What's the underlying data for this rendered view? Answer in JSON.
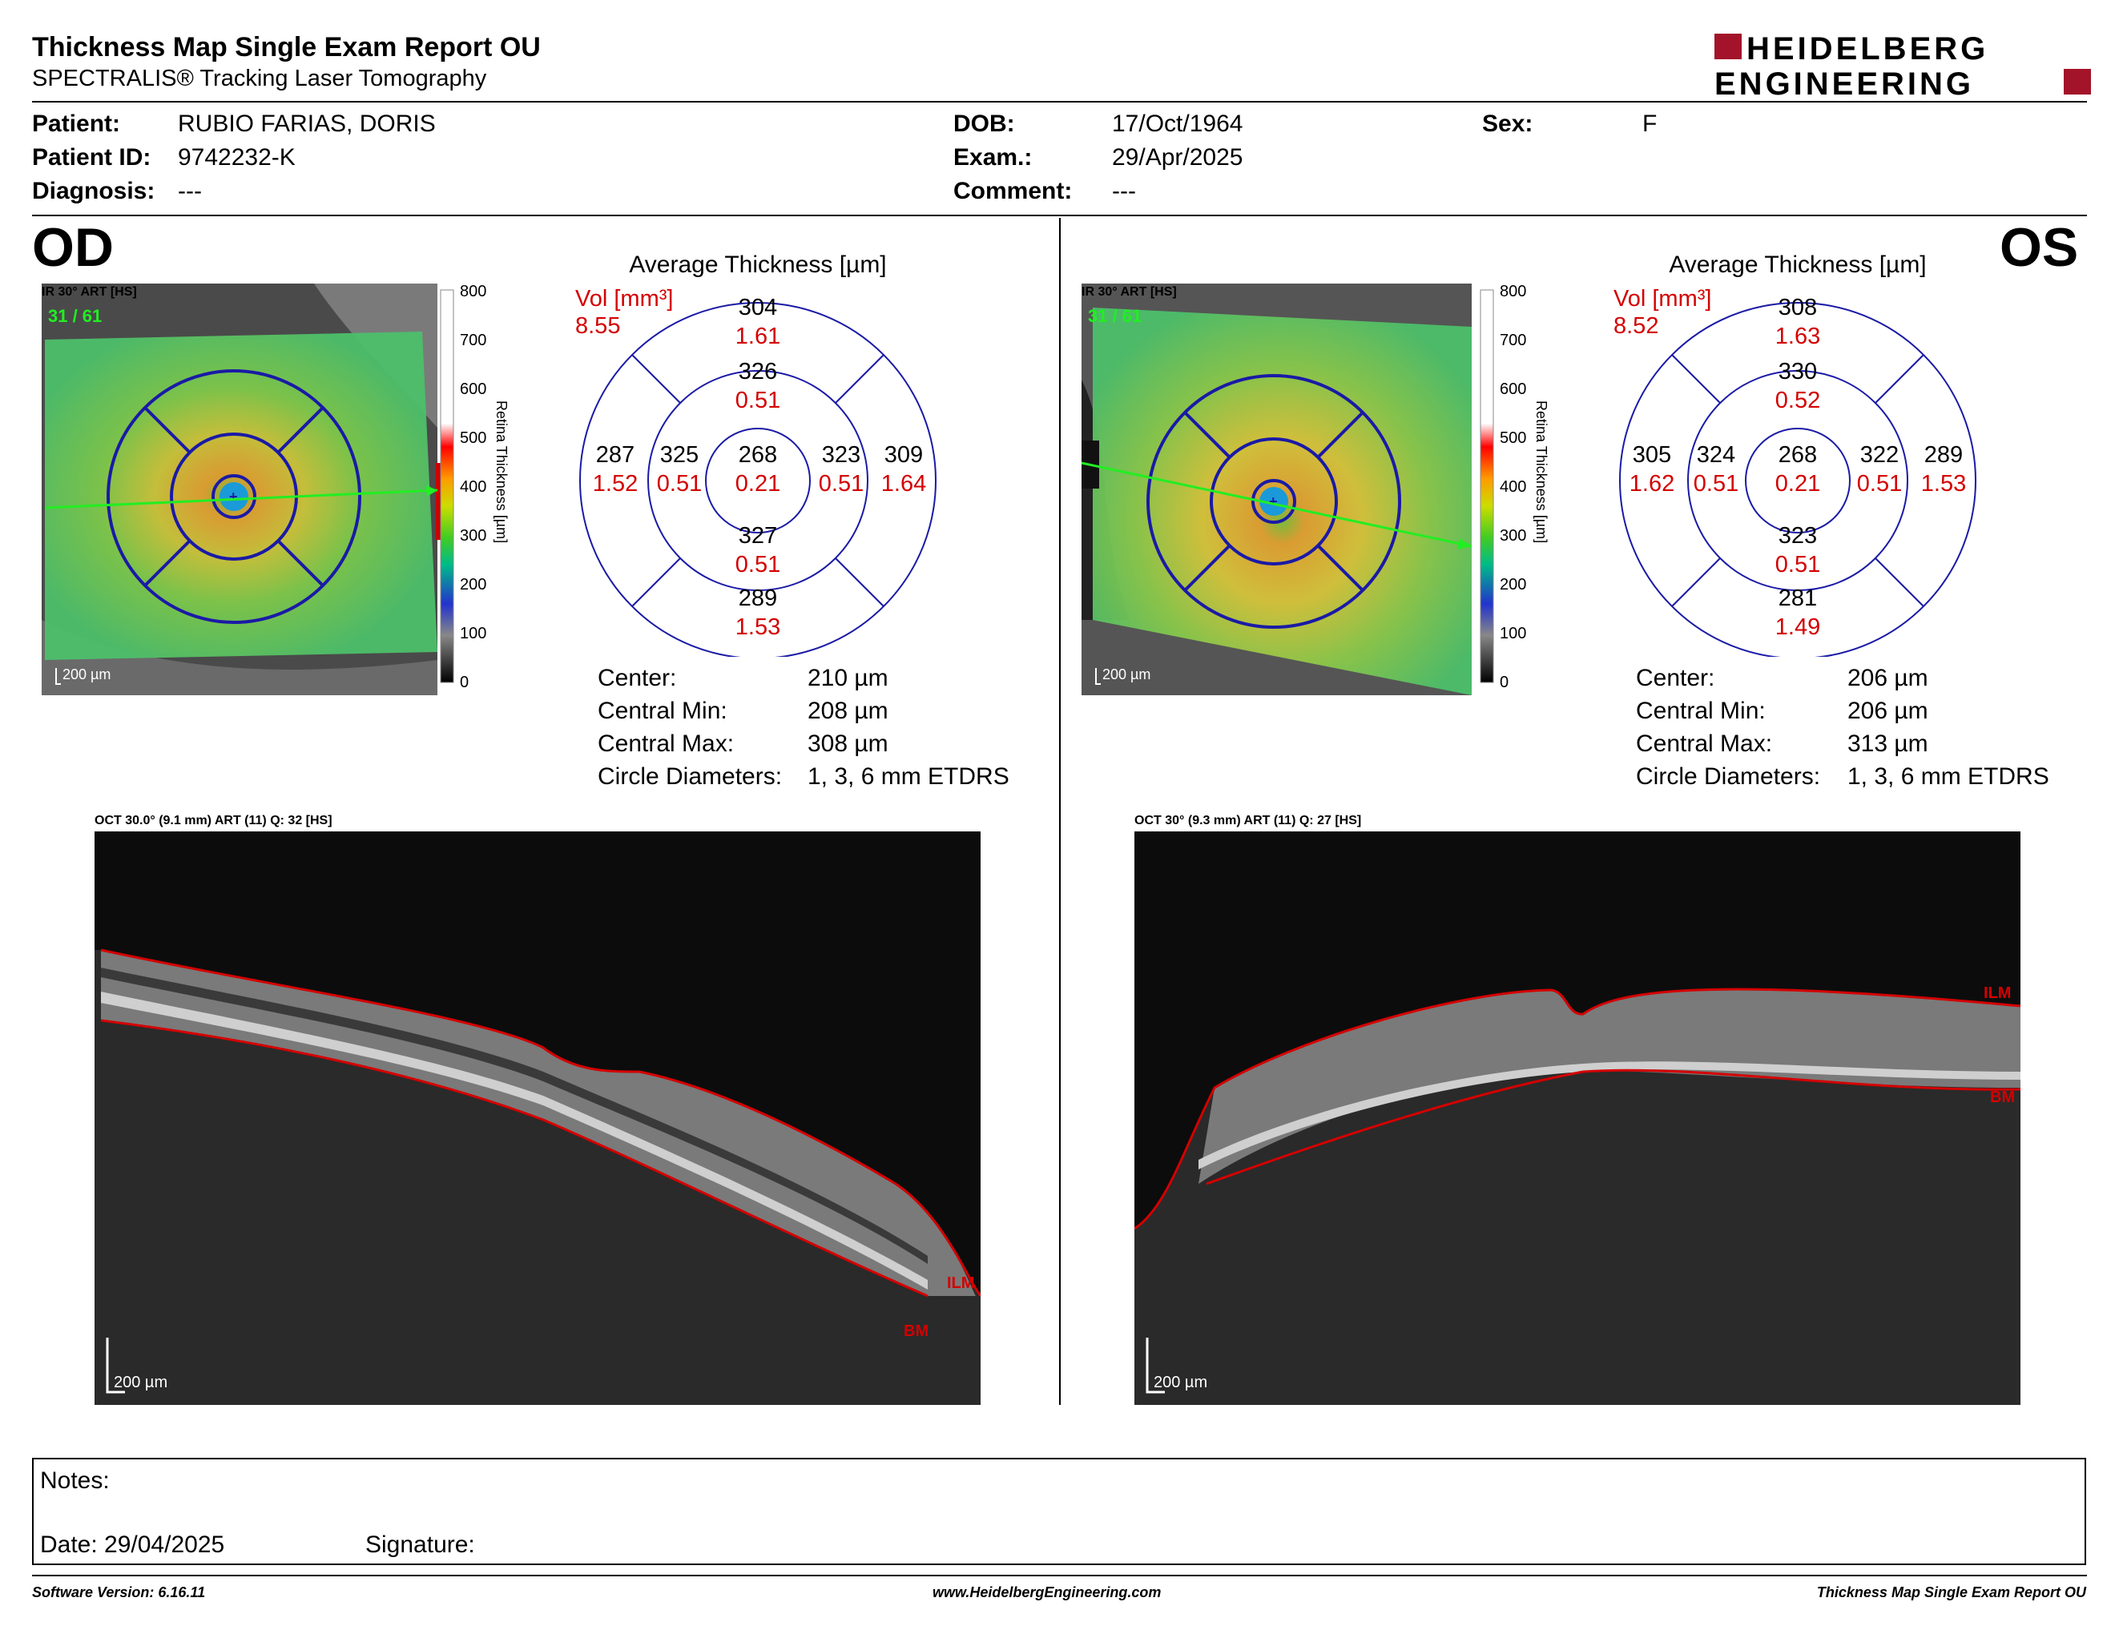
{
  "header": {
    "title": "Thickness Map Single Exam Report OU",
    "subtitle": "SPECTRALIS® Tracking Laser Tomography",
    "logo_line1": "HEIDELBERG",
    "logo_line2": "ENGINEERING"
  },
  "patient": {
    "patient_label": "Patient:",
    "patient_value": "RUBIO FARIAS, DORIS",
    "id_label": "Patient ID:",
    "id_value": "9742232-K",
    "diagnosis_label": "Diagnosis:",
    "diagnosis_value": "---",
    "dob_label": "DOB:",
    "dob_value": "17/Oct/1964",
    "exam_label": "Exam.:",
    "exam_value": "29/Apr/2025",
    "comment_label": "Comment:",
    "comment_value": "---",
    "sex_label": "Sex:",
    "sex_value": "F"
  },
  "colorbar": {
    "ticks": [
      "800",
      "700",
      "600",
      "500",
      "400",
      "300",
      "200",
      "100",
      "0"
    ],
    "label": "Retina Thickness [µm]"
  },
  "od": {
    "eye": "OD",
    "ir_caption": "IR 30° ART [HS]",
    "frame": "31 / 61",
    "scale": "200 µm",
    "etdrs_title": "Average Thickness [µm]",
    "vol_label": "Vol [mm³]",
    "vol_total": "8.55",
    "sectors": {
      "outer_sup": {
        "t": "304",
        "v": "1.61"
      },
      "inner_sup": {
        "t": "326",
        "v": "0.51"
      },
      "outer_temp": {
        "t": "287",
        "v": "1.52"
      },
      "inner_temp": {
        "t": "325",
        "v": "0.51"
      },
      "center": {
        "t": "268",
        "v": "0.21"
      },
      "inner_nas": {
        "t": "323",
        "v": "0.51"
      },
      "outer_nas": {
        "t": "309",
        "v": "1.64"
      },
      "inner_inf": {
        "t": "327",
        "v": "0.51"
      },
      "outer_inf": {
        "t": "289",
        "v": "1.53"
      }
    },
    "stats": [
      {
        "label": "Center:",
        "value": "210 µm"
      },
      {
        "label": "Central Min:",
        "value": "208 µm"
      },
      {
        "label": "Central Max:",
        "value": "308 µm"
      },
      {
        "label": "Circle Diameters:",
        "value": "1, 3, 6 mm ETDRS"
      }
    ],
    "oct_caption": "OCT 30.0° (9.1 mm) ART (11) Q: 32 [HS]",
    "oct_scale": "200 µm",
    "ilm": "ILM",
    "bm": "BM"
  },
  "os": {
    "eye": "OS",
    "ir_caption": "IR 30° ART [HS]",
    "frame": "31 / 61",
    "scale": "200 µm",
    "etdrs_title": "Average Thickness [µm]",
    "vol_label": "Vol [mm³]",
    "vol_total": "8.52",
    "sectors": {
      "outer_sup": {
        "t": "308",
        "v": "1.63"
      },
      "inner_sup": {
        "t": "330",
        "v": "0.52"
      },
      "outer_temp": {
        "t": "305",
        "v": "1.62"
      },
      "inner_temp": {
        "t": "324",
        "v": "0.51"
      },
      "center": {
        "t": "268",
        "v": "0.21"
      },
      "inner_nas": {
        "t": "322",
        "v": "0.51"
      },
      "outer_nas": {
        "t": "289",
        "v": "1.53"
      },
      "inner_inf": {
        "t": "323",
        "v": "0.51"
      },
      "outer_inf": {
        "t": "281",
        "v": "1.49"
      }
    },
    "stats": [
      {
        "label": "Center:",
        "value": "206 µm"
      },
      {
        "label": "Central Min:",
        "value": "206 µm"
      },
      {
        "label": "Central Max:",
        "value": "313 µm"
      },
      {
        "label": "Circle Diameters:",
        "value": "1, 3, 6 mm ETDRS"
      }
    ],
    "oct_caption": "OCT 30° (9.3 mm) ART (11) Q: 27 [HS]",
    "oct_scale": "200 µm",
    "ilm": "ILM",
    "bm": "BM"
  },
  "notes": {
    "notes_label": "Notes:",
    "date_label": "Date: 29/04/2025",
    "signature_label": "Signature:"
  },
  "footer": {
    "software": "Software Version: 6.16.11",
    "website": "www.HeidelbergEngineering.com",
    "report": "Thickness Map Single Exam Report OU"
  },
  "colors": {
    "red": "#d40000",
    "navy": "#1a1aa6",
    "brand": "#a3142a"
  }
}
